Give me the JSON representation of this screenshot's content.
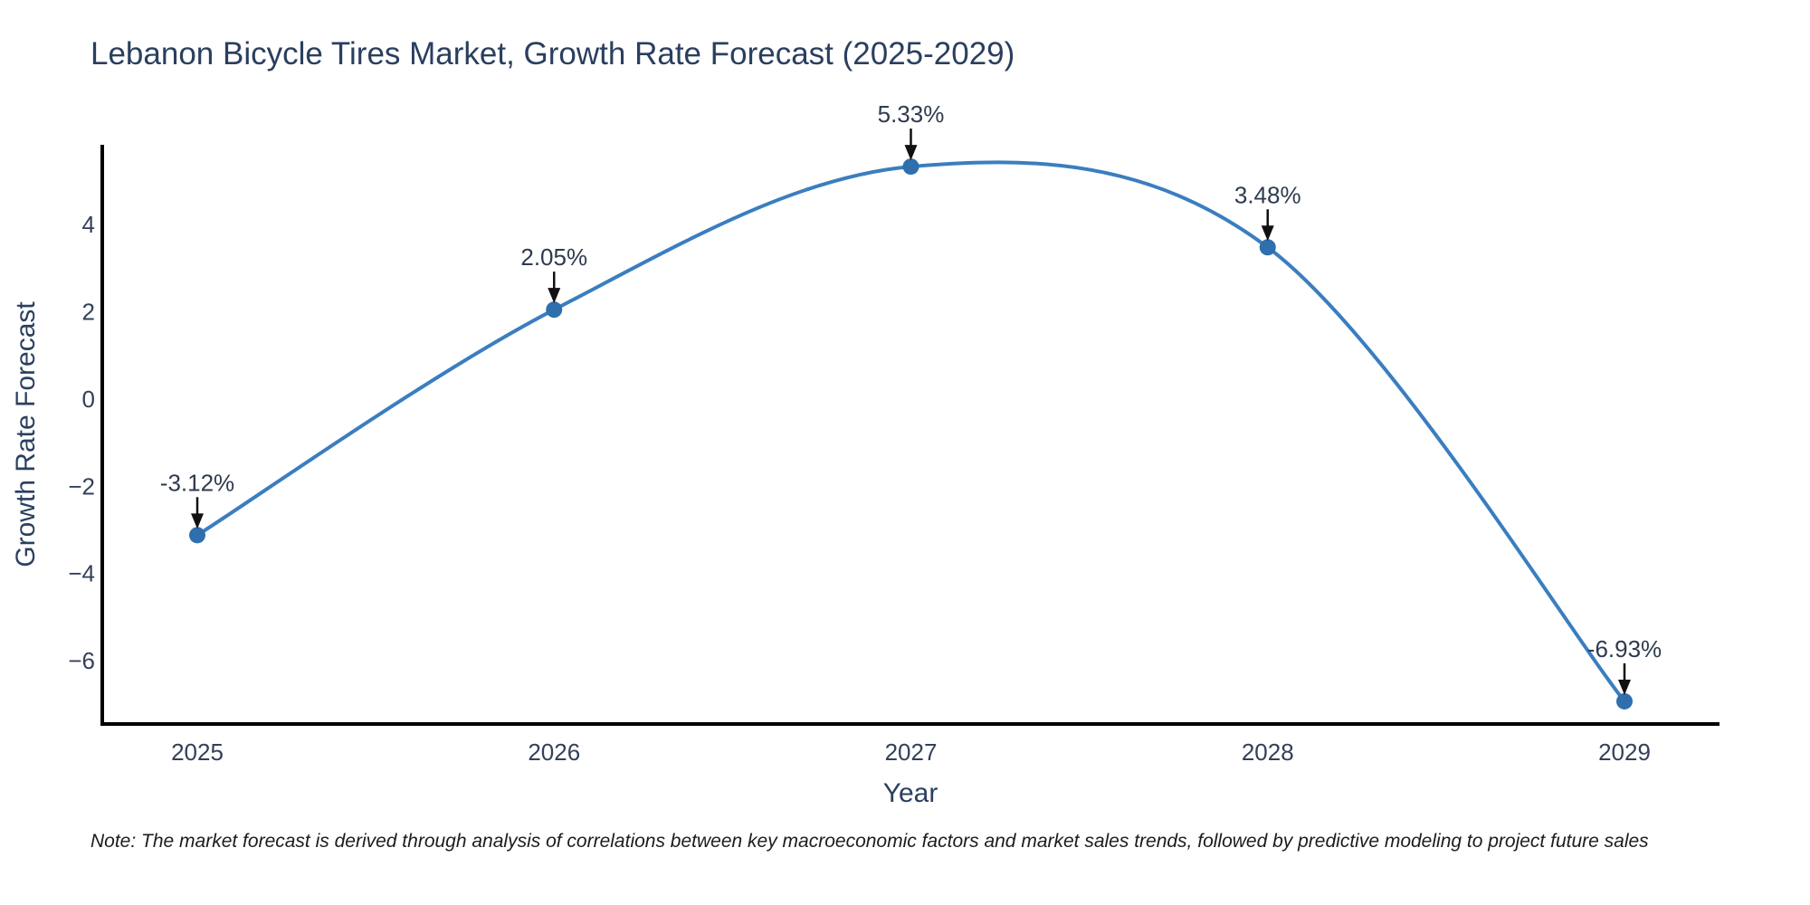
{
  "title": "Lebanon Bicycle Tires Market, Growth Rate Forecast (2025-2029)",
  "note": "Note: The market forecast is derived through analysis of correlations between key macroeconomic factors and market sales trends, followed by predictive modeling to project future sales",
  "chart_data": {
    "type": "line",
    "x": [
      "2025",
      "2026",
      "2027",
      "2028",
      "2029"
    ],
    "values": [
      -3.12,
      2.05,
      5.33,
      3.48,
      -6.93
    ],
    "labels": [
      "-3.12%",
      "2.05%",
      "5.33%",
      "3.48%",
      "-6.93%"
    ],
    "title": "Lebanon Bicycle Tires Market, Growth Rate Forecast (2025-2029)",
    "xlabel": "Year",
    "ylabel": "Growth Rate Forecast",
    "ytick_values": [
      4,
      2,
      0,
      -2,
      -4,
      -6
    ],
    "ytick_labels": [
      "4",
      "2",
      "0",
      "−2",
      "−4",
      "−6"
    ],
    "ylim": [
      -7.45,
      5.83
    ],
    "curve": "spline",
    "grid": false,
    "legend": "none",
    "line_color": "#3a7ebf",
    "marker_color": "#2f6fad",
    "axis_color": "#000000",
    "annotation_arrow_color": "#111111"
  }
}
